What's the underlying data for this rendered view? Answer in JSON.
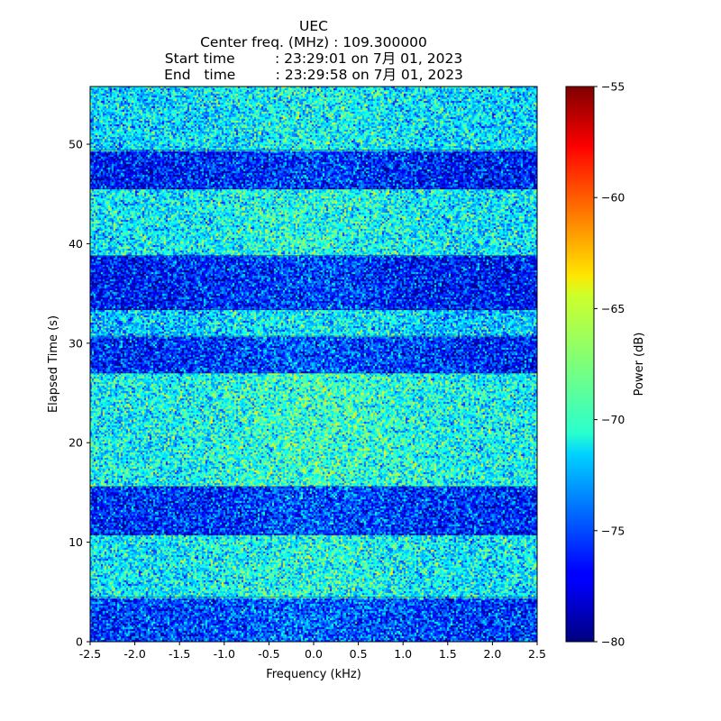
{
  "chart_data": {
    "type": "heatmap",
    "title_lines": [
      "UEC",
      "Center freq. (MHz) : 109.300000",
      "Start time         : 23:29:01 on 7月 01, 2023",
      "End   time         : 23:29:58 on 7月 01, 2023"
    ],
    "xlabel": "Frequency (kHz)",
    "ylabel": "Elapsed Time (s)",
    "xlim": [
      -2.5,
      2.5
    ],
    "ylim": [
      0,
      55.8
    ],
    "x_ticks": [
      "-2.5",
      "-2.0",
      "-1.5",
      "-1.0",
      "-0.5",
      "0.0",
      "0.5",
      "1.0",
      "1.5",
      "2.0",
      "2.5"
    ],
    "x_tick_values": [
      -2.5,
      -2.0,
      -1.5,
      -1.0,
      -0.5,
      0.0,
      0.5,
      1.0,
      1.5,
      2.0,
      2.5
    ],
    "y_ticks": [
      "0",
      "10",
      "20",
      "30",
      "40",
      "50"
    ],
    "y_tick_values": [
      0,
      10,
      20,
      30,
      40,
      50
    ],
    "colormap": "jet",
    "colorbar": {
      "label": "Power (dB)",
      "range": [
        -80,
        -55
      ],
      "ticks": [
        "−80",
        "−75",
        "−70",
        "−65",
        "−60",
        "−55"
      ],
      "tick_values": [
        -80,
        -75,
        -70,
        -65,
        -60,
        -55
      ]
    },
    "time_bands": [
      {
        "t_start": 0.0,
        "t_end": 4.5,
        "mean_power": -75.5
      },
      {
        "t_start": 4.5,
        "t_end": 10.8,
        "mean_power": -71.0
      },
      {
        "t_start": 10.8,
        "t_end": 15.6,
        "mean_power": -76.0
      },
      {
        "t_start": 15.6,
        "t_end": 27.0,
        "mean_power": -70.5
      },
      {
        "t_start": 27.0,
        "t_end": 30.7,
        "mean_power": -76.0
      },
      {
        "t_start": 30.7,
        "t_end": 33.4,
        "mean_power": -72.0
      },
      {
        "t_start": 33.4,
        "t_end": 38.8,
        "mean_power": -76.5
      },
      {
        "t_start": 38.8,
        "t_end": 45.5,
        "mean_power": -71.0
      },
      {
        "t_start": 45.5,
        "t_end": 49.4,
        "mean_power": -76.5
      },
      {
        "t_start": 49.4,
        "t_end": 55.8,
        "mean_power": -71.5
      }
    ]
  }
}
